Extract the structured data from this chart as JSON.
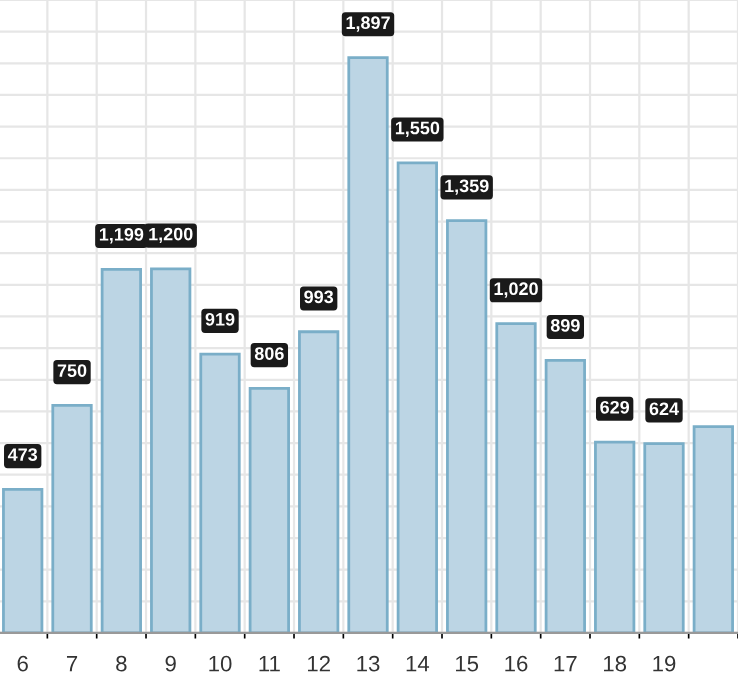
{
  "chart_data": {
    "type": "bar",
    "categories": [
      "6",
      "7",
      "8",
      "9",
      "10",
      "11",
      "12",
      "13",
      "14",
      "15",
      "16",
      "17",
      "18",
      "19",
      null
    ],
    "values": [
      473,
      750,
      1199,
      1200,
      919,
      806,
      993,
      1897,
      1550,
      1359,
      1020,
      899,
      629,
      624,
      680
    ],
    "value_labels": [
      "473",
      "750",
      "1,199",
      "1,200",
      "919",
      "806",
      "993",
      "1,897",
      "1,550",
      "1,359",
      "1,020",
      "899",
      "629",
      "624",
      null
    ],
    "color": "#bcd5e4",
    "grid": true
  }
}
